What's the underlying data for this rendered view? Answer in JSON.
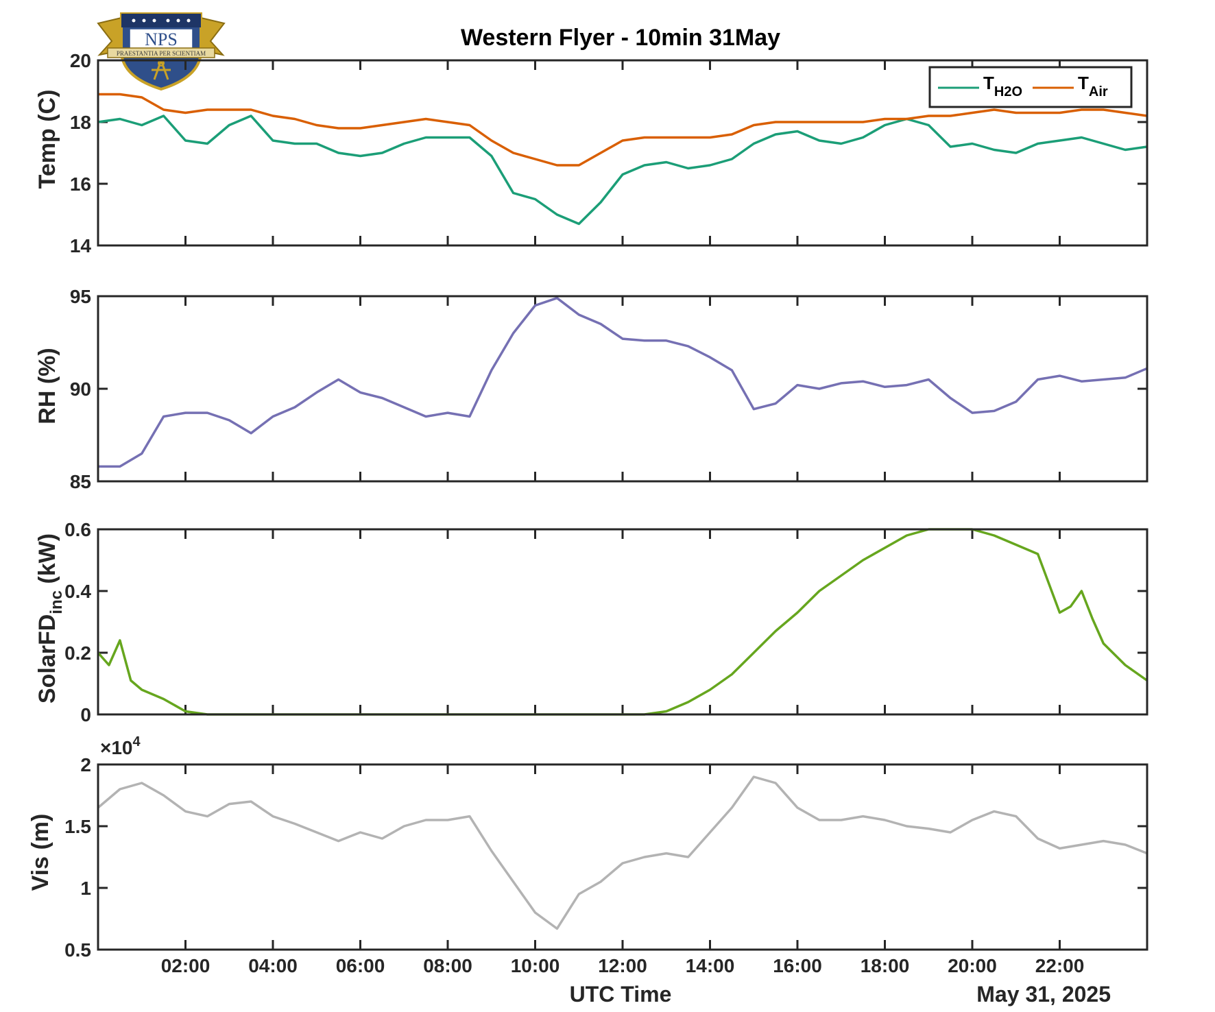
{
  "title": "Western Flyer - 10min 31May",
  "logo": {
    "text": "NPS",
    "motto": "PRAESTANTIA PER SCIENTIAM",
    "colors": {
      "shield": "#2f4f8a",
      "gold": "#c9a227"
    }
  },
  "xaxis": {
    "label": "UTC Time",
    "date_label": "May 31, 2025",
    "range": [
      "00:00",
      "24:00"
    ],
    "ticks": [
      "02:00",
      "04:00",
      "06:00",
      "08:00",
      "10:00",
      "12:00",
      "14:00",
      "16:00",
      "18:00",
      "20:00",
      "22:00"
    ]
  },
  "chart_data": [
    {
      "type": "line",
      "id": "temp",
      "ylabel": "Temp (C)",
      "ylim": [
        14,
        20
      ],
      "yticks": [
        "14",
        "16",
        "18",
        "20"
      ],
      "legend": {
        "placement": "top-right",
        "entries": [
          {
            "base": "T",
            "sub": "H2O"
          },
          {
            "base": "T",
            "sub": "Air"
          }
        ]
      },
      "x": [
        "00:00",
        "00:30",
        "01:00",
        "01:30",
        "02:00",
        "02:30",
        "03:00",
        "03:30",
        "04:00",
        "04:30",
        "05:00",
        "05:30",
        "06:00",
        "06:30",
        "07:00",
        "07:30",
        "08:00",
        "08:30",
        "09:00",
        "09:30",
        "10:00",
        "10:30",
        "11:00",
        "11:30",
        "12:00",
        "12:30",
        "13:00",
        "13:30",
        "14:00",
        "14:30",
        "15:00",
        "15:30",
        "16:00",
        "16:30",
        "17:00",
        "17:30",
        "18:00",
        "18:30",
        "19:00",
        "19:30",
        "20:00",
        "20:30",
        "21:00",
        "21:30",
        "22:00",
        "22:30",
        "23:00",
        "23:30",
        "24:00"
      ],
      "series": [
        {
          "name": "T_H2O",
          "color": "#1b9e77",
          "values": [
            18.0,
            18.1,
            17.9,
            18.2,
            17.4,
            17.3,
            17.9,
            18.2,
            17.4,
            17.3,
            17.3,
            17.0,
            16.9,
            17.0,
            17.3,
            17.5,
            17.5,
            17.5,
            16.9,
            15.7,
            15.5,
            15.0,
            14.7,
            15.4,
            16.3,
            16.6,
            16.7,
            16.5,
            16.6,
            16.8,
            17.3,
            17.6,
            17.7,
            17.4,
            17.3,
            17.5,
            17.9,
            18.1,
            17.9,
            17.2,
            17.3,
            17.1,
            17.0,
            17.3,
            17.4,
            17.5,
            17.3,
            17.1,
            17.2
          ]
        },
        {
          "name": "T_Air",
          "color": "#d95f02",
          "values": [
            18.9,
            18.9,
            18.8,
            18.4,
            18.3,
            18.4,
            18.4,
            18.4,
            18.2,
            18.1,
            17.9,
            17.8,
            17.8,
            17.9,
            18.0,
            18.1,
            18.0,
            17.9,
            17.4,
            17.0,
            16.8,
            16.6,
            16.6,
            17.0,
            17.4,
            17.5,
            17.5,
            17.5,
            17.5,
            17.6,
            17.9,
            18.0,
            18.0,
            18.0,
            18.0,
            18.0,
            18.1,
            18.1,
            18.2,
            18.2,
            18.3,
            18.4,
            18.3,
            18.3,
            18.3,
            18.4,
            18.4,
            18.3,
            18.2
          ]
        }
      ]
    },
    {
      "type": "line",
      "id": "rh",
      "ylabel": "RH (%)",
      "ylim": [
        85,
        95
      ],
      "yticks": [
        "85",
        "90",
        "95"
      ],
      "x": [
        "00:00",
        "00:30",
        "01:00",
        "01:30",
        "02:00",
        "02:30",
        "03:00",
        "03:30",
        "04:00",
        "04:30",
        "05:00",
        "05:30",
        "06:00",
        "06:30",
        "07:00",
        "07:30",
        "08:00",
        "08:30",
        "09:00",
        "09:30",
        "10:00",
        "10:30",
        "11:00",
        "11:30",
        "12:00",
        "12:30",
        "13:00",
        "13:30",
        "14:00",
        "14:30",
        "15:00",
        "15:30",
        "16:00",
        "16:30",
        "17:00",
        "17:30",
        "18:00",
        "18:30",
        "19:00",
        "19:30",
        "20:00",
        "20:30",
        "21:00",
        "21:30",
        "22:00",
        "22:30",
        "23:00",
        "23:30",
        "24:00"
      ],
      "series": [
        {
          "name": "RH",
          "color": "#7570b3",
          "values": [
            85.8,
            85.8,
            86.5,
            88.5,
            88.7,
            88.7,
            88.3,
            87.6,
            88.5,
            89.0,
            89.8,
            90.5,
            89.8,
            89.5,
            89.0,
            88.5,
            88.7,
            88.5,
            91.0,
            93.0,
            94.5,
            94.9,
            94.0,
            93.5,
            92.7,
            92.6,
            92.6,
            92.3,
            91.7,
            91.0,
            88.9,
            89.2,
            90.2,
            90.0,
            90.3,
            90.4,
            90.1,
            90.2,
            90.5,
            89.5,
            88.7,
            88.8,
            89.3,
            90.5,
            90.7,
            90.4,
            90.5,
            90.6,
            91.1
          ]
        }
      ]
    },
    {
      "type": "line",
      "id": "solar",
      "ylabel": "SolarFD",
      "ylabel_sub": "inc",
      "ylabel_unit": " (kW)",
      "ylim": [
        0,
        0.6
      ],
      "yticks": [
        "0",
        "0.2",
        "0.4",
        "0.6"
      ],
      "x": [
        "00:00",
        "00:15",
        "00:30",
        "00:45",
        "01:00",
        "01:30",
        "02:00",
        "02:30",
        "12:30",
        "13:00",
        "13:30",
        "14:00",
        "14:30",
        "15:00",
        "15:30",
        "16:00",
        "16:30",
        "17:00",
        "17:30",
        "18:00",
        "18:30",
        "19:00",
        "19:30",
        "20:00",
        "20:30",
        "21:00",
        "21:30",
        "22:00",
        "22:15",
        "22:30",
        "22:45",
        "23:00",
        "23:30",
        "24:00"
      ],
      "series": [
        {
          "name": "SolarFD_inc",
          "color": "#66a61e",
          "values": [
            0.2,
            0.16,
            0.24,
            0.11,
            0.08,
            0.05,
            0.01,
            0.0,
            0.0,
            0.01,
            0.04,
            0.08,
            0.13,
            0.2,
            0.27,
            0.33,
            0.4,
            0.45,
            0.5,
            0.54,
            0.58,
            0.6,
            0.6,
            0.6,
            0.58,
            0.55,
            0.52,
            0.33,
            0.35,
            0.4,
            0.31,
            0.23,
            0.16,
            0.11
          ]
        }
      ]
    },
    {
      "type": "line",
      "id": "vis",
      "ylabel": "Vis (m)",
      "ylim": [
        0.5,
        2
      ],
      "yticks": [
        "0.5",
        "1",
        "1.5",
        "2"
      ],
      "exponent": "×10",
      "exponent_power": "4",
      "x": [
        "00:00",
        "00:30",
        "01:00",
        "01:30",
        "02:00",
        "02:30",
        "03:00",
        "03:30",
        "04:00",
        "04:30",
        "05:00",
        "05:30",
        "06:00",
        "06:30",
        "07:00",
        "07:30",
        "08:00",
        "08:30",
        "09:00",
        "09:30",
        "10:00",
        "10:30",
        "11:00",
        "11:30",
        "12:00",
        "12:30",
        "13:00",
        "13:30",
        "14:00",
        "14:30",
        "15:00",
        "15:30",
        "16:00",
        "16:30",
        "17:00",
        "17:30",
        "18:00",
        "18:30",
        "19:00",
        "19:30",
        "20:00",
        "20:30",
        "21:00",
        "21:30",
        "22:00",
        "22:30",
        "23:00",
        "23:30",
        "24:00"
      ],
      "series": [
        {
          "name": "Vis",
          "color": "#b3b3b3",
          "values": [
            1.65,
            1.8,
            1.85,
            1.75,
            1.62,
            1.58,
            1.68,
            1.7,
            1.58,
            1.52,
            1.45,
            1.38,
            1.45,
            1.4,
            1.5,
            1.55,
            1.55,
            1.58,
            1.3,
            1.05,
            0.8,
            0.67,
            0.95,
            1.05,
            1.2,
            1.25,
            1.28,
            1.25,
            1.45,
            1.65,
            1.9,
            1.85,
            1.65,
            1.55,
            1.55,
            1.58,
            1.55,
            1.5,
            1.48,
            1.45,
            1.55,
            1.62,
            1.58,
            1.4,
            1.32,
            1.35,
            1.38,
            1.35,
            1.28
          ]
        }
      ]
    }
  ]
}
